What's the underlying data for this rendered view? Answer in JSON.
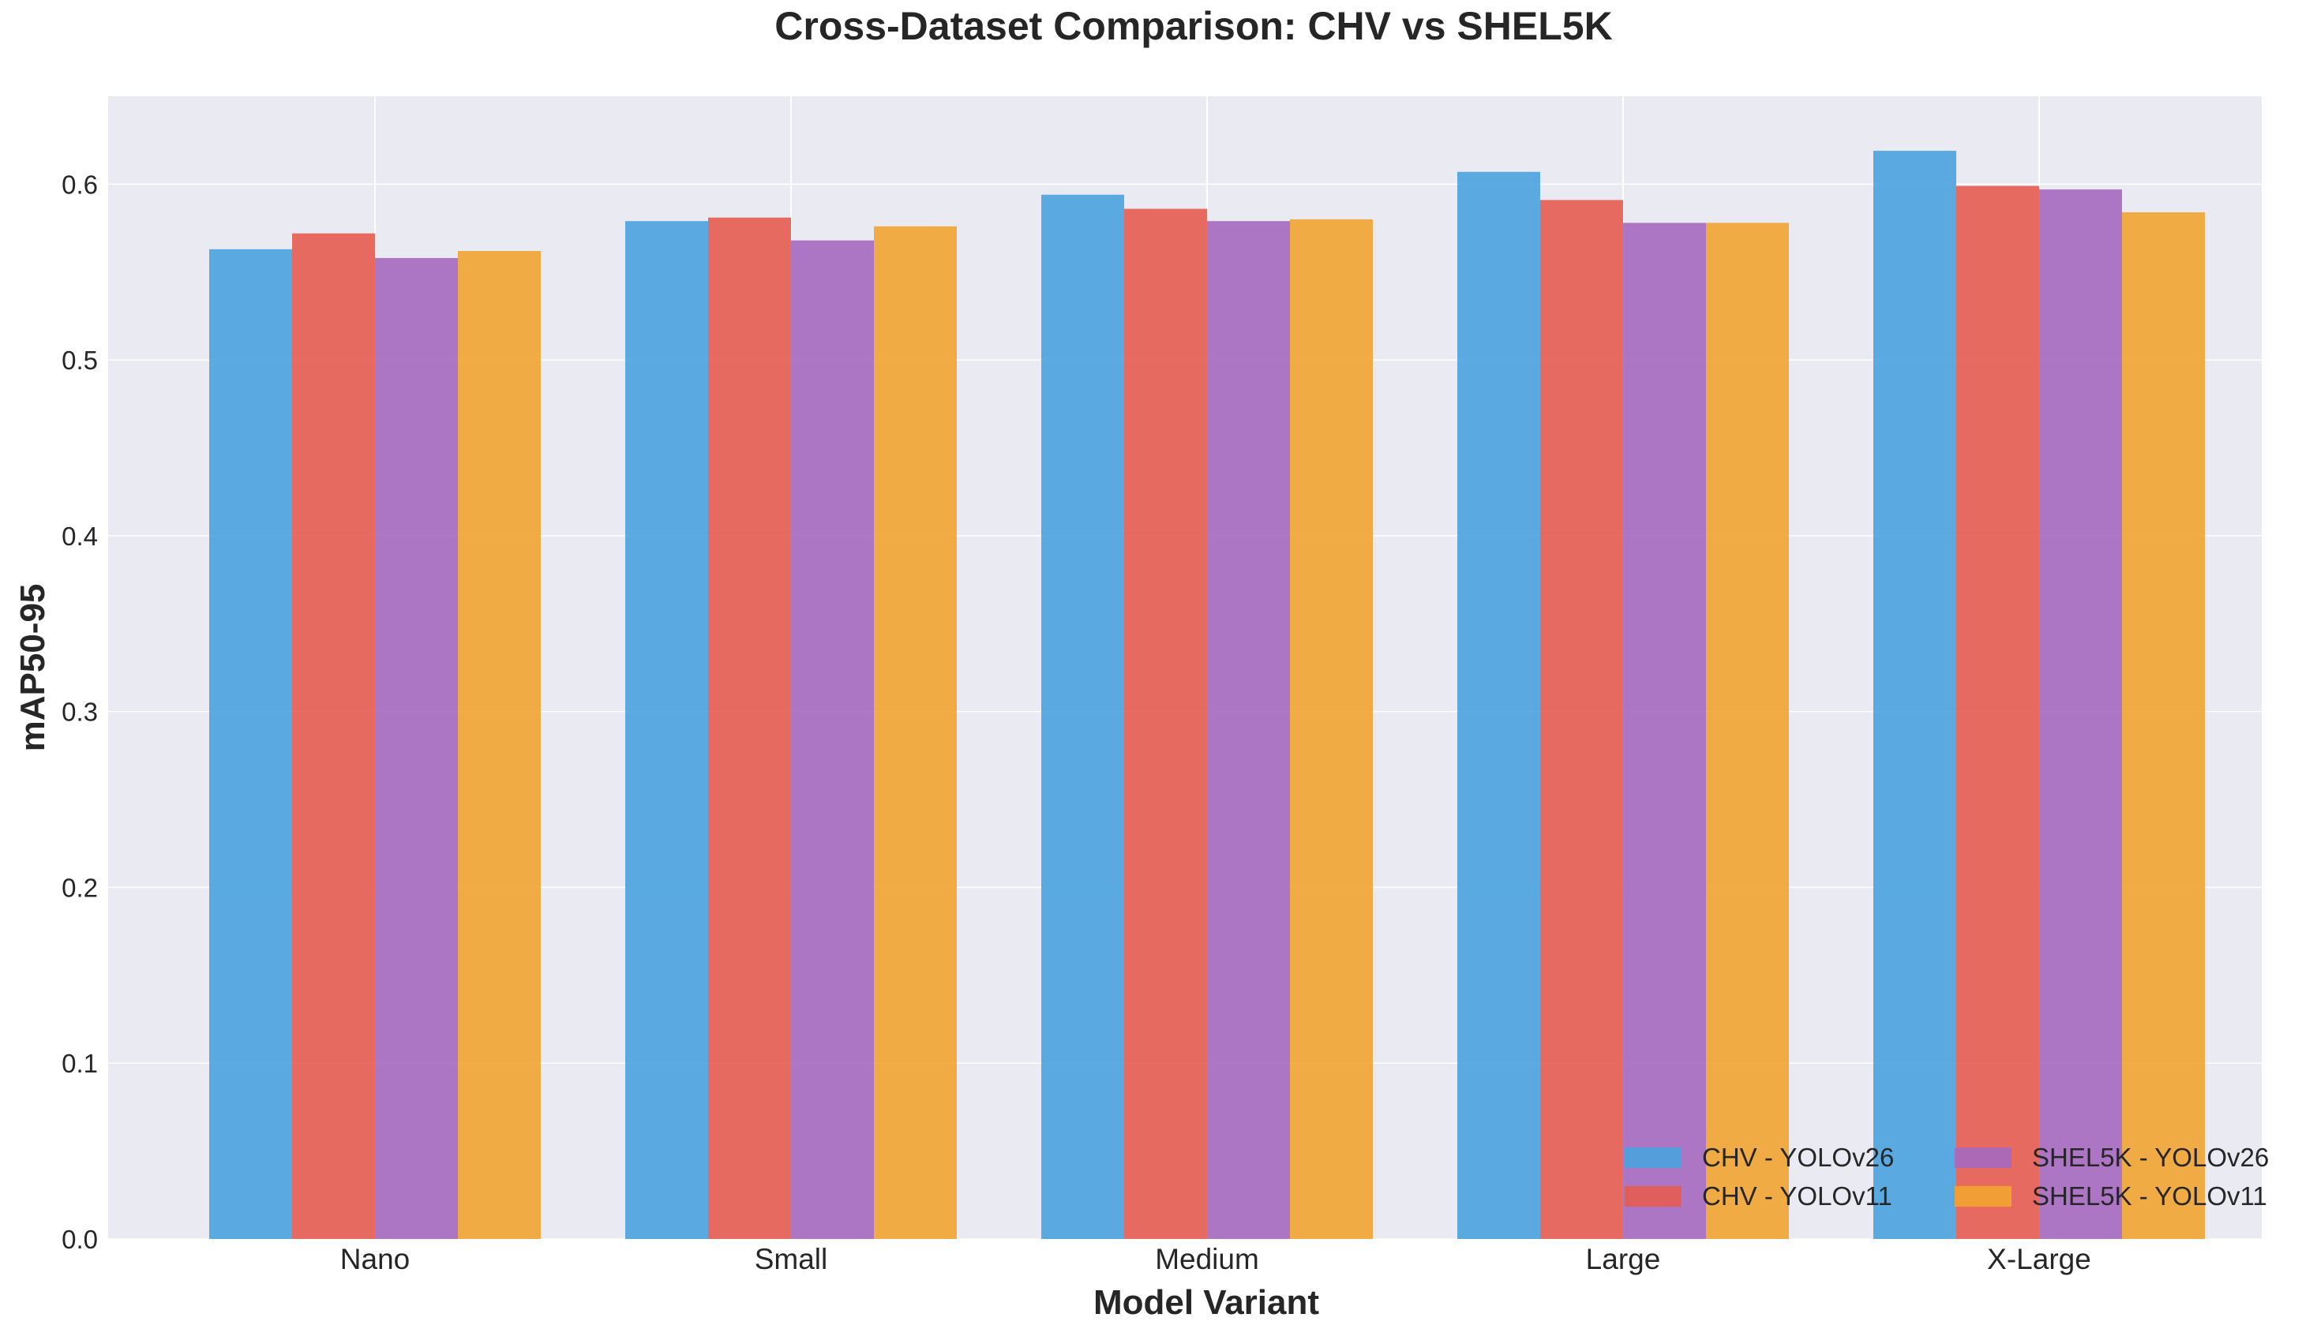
{
  "chart_data": {
    "type": "bar",
    "title": "Cross-Dataset Comparison: CHV vs SHEL5K",
    "xlabel": "Model Variant",
    "ylabel": "mAP50-95",
    "categories": [
      "Nano",
      "Small",
      "Medium",
      "Large",
      "X-Large"
    ],
    "series": [
      {
        "name": "CHV - YOLOv26",
        "color": "#4aa3df",
        "values": [
          0.563,
          0.579,
          0.594,
          0.607,
          0.619
        ]
      },
      {
        "name": "CHV - YOLOv11",
        "color": "#e65c50",
        "values": [
          0.572,
          0.581,
          0.586,
          0.591,
          0.599
        ]
      },
      {
        "name": "SHEL5K - YOLOv26",
        "color": "#a569bf",
        "values": [
          0.558,
          0.568,
          0.579,
          0.578,
          0.597
        ]
      },
      {
        "name": "SHEL5K - YOLOv11",
        "color": "#f2a431",
        "values": [
          0.562,
          0.576,
          0.58,
          0.578,
          0.584
        ]
      }
    ],
    "ylim": [
      0,
      0.65
    ],
    "yticks": [
      0.0,
      0.1,
      0.2,
      0.3,
      0.4,
      0.5,
      0.6
    ],
    "grid": true,
    "legend_position": "bottom-right"
  }
}
